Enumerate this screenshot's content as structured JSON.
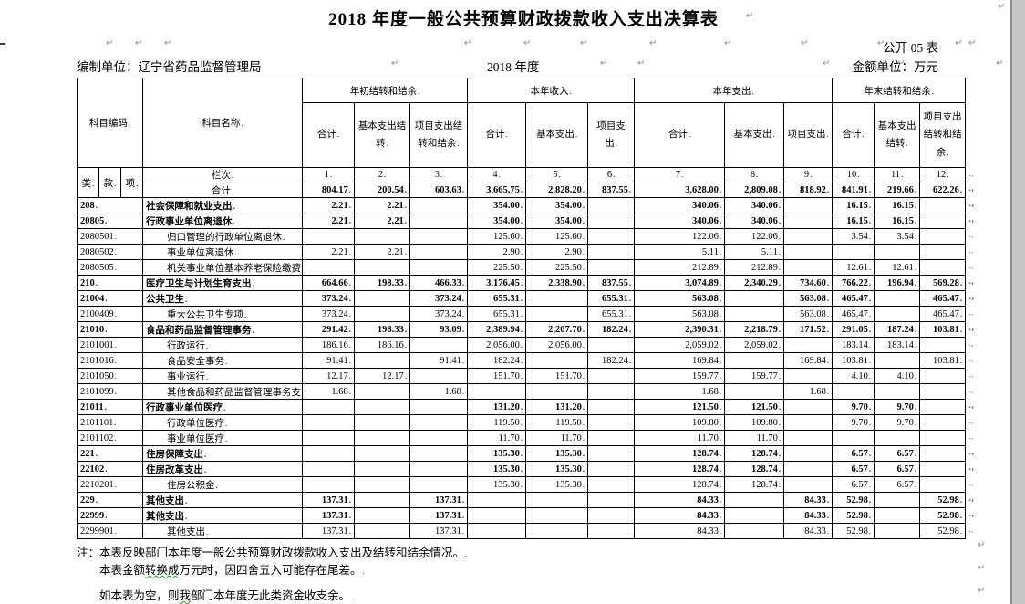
{
  "page": {
    "title": "2018 年度一般公共预算财政拨款收入支出决算表",
    "table_code": "公开 05 表",
    "unit_label": "编制单位：辽宁省药品监督管理局",
    "period": "2018 年度",
    "amount_unit": "金额单位：万元"
  },
  "icons": {
    "paragraph_mark": "↵",
    "row_end_mark": ".,"
  },
  "table": {
    "code_header": "科目编码",
    "name_header": "科目名称",
    "code_parts": [
      "类",
      "款",
      "项"
    ],
    "lanci_label": "栏次",
    "col_nums": [
      "1",
      "2",
      "3",
      "4",
      "5",
      "6",
      "7",
      "8",
      "9",
      "10",
      "11",
      "12"
    ],
    "groups": [
      "年初结转和结余",
      "本年收入",
      "本年支出",
      "年末结转和结余"
    ],
    "subheaders": [
      "合计",
      "基本支出结转",
      "项目支出结转和结余",
      "合计",
      "基本支出",
      "项目支出",
      "合计",
      "基本支出",
      "项目支出",
      "合计",
      "基本支出结转",
      "项目支出结转和结余"
    ],
    "rows": [
      {
        "code": "",
        "name": "合计",
        "total": true,
        "bold": false,
        "indent": false,
        "values": [
          "804.17",
          "200.54",
          "603.63",
          "3,665.75",
          "2,828.20",
          "837.55",
          "3,628.00",
          "2,809.08",
          "818.92",
          "841.91",
          "219.66",
          "622.26"
        ]
      },
      {
        "code": "208",
        "name": "社会保障和就业支出",
        "bold": true,
        "indent": false,
        "values": [
          "2.21",
          "2.21",
          "",
          "354.00",
          "354.00",
          "",
          "340.06",
          "340.06",
          "",
          "16.15",
          "16.15",
          ""
        ]
      },
      {
        "code": "20805",
        "name": "行政事业单位离退休",
        "bold": true,
        "indent": false,
        "values": [
          "2.21",
          "2.21",
          "",
          "354.00",
          "354.00",
          "",
          "340.06",
          "340.06",
          "",
          "16.15",
          "16.15",
          ""
        ]
      },
      {
        "code": "2080501",
        "name": "归口管理的行政单位离退休",
        "bold": false,
        "indent": true,
        "values": [
          "",
          "",
          "",
          "125.60",
          "125.60",
          "",
          "122.06",
          "122.06",
          "",
          "3.54",
          "3.54",
          ""
        ]
      },
      {
        "code": "2080502",
        "name": "事业单位离退休",
        "bold": false,
        "indent": true,
        "values": [
          "2.21",
          "2.21",
          "",
          "2.90",
          "2.90",
          "",
          "5.11",
          "5.11",
          "",
          "",
          "",
          ""
        ]
      },
      {
        "code": "2080505",
        "name": "机关事业单位基本养老保险缴费支出",
        "bold": false,
        "indent": true,
        "values": [
          "",
          "",
          "",
          "225.50",
          "225.50",
          "",
          "212.89",
          "212.89",
          "",
          "12.61",
          "12.61",
          ""
        ]
      },
      {
        "code": "210",
        "name": "医疗卫生与计划生育支出",
        "bold": true,
        "indent": false,
        "values": [
          "664.66",
          "198.33",
          "466.33",
          "3,176.45",
          "2,338.90",
          "837.55",
          "3,074.89",
          "2,340.29",
          "734.60",
          "766.22",
          "196.94",
          "569.28"
        ]
      },
      {
        "code": "21004",
        "name": "公共卫生",
        "bold": true,
        "indent": false,
        "values": [
          "373.24",
          "",
          "373.24",
          "655.31",
          "",
          "655.31",
          "563.08",
          "",
          "563.08",
          "465.47",
          "",
          "465.47"
        ]
      },
      {
        "code": "2100409",
        "name": "重大公共卫生专项",
        "bold": false,
        "indent": true,
        "values": [
          "373.24",
          "",
          "373.24",
          "655.31",
          "",
          "655.31",
          "563.08",
          "",
          "563.08",
          "465.47",
          "",
          "465.47"
        ]
      },
      {
        "code": "21010",
        "name": "食品和药品监督管理事务",
        "bold": true,
        "indent": false,
        "values": [
          "291.42",
          "198.33",
          "93.09",
          "2,389.94",
          "2,207.70",
          "182.24",
          "2,390.31",
          "2,218.79",
          "171.52",
          "291.05",
          "187.24",
          "103.81"
        ]
      },
      {
        "code": "2101001",
        "name": "行政运行",
        "bold": false,
        "indent": true,
        "values": [
          "186.16",
          "186.16",
          "",
          "2,056.00",
          "2,056.00",
          "",
          "2,059.02",
          "2,059.02",
          "",
          "183.14",
          "183.14",
          ""
        ]
      },
      {
        "code": "2101016",
        "name": "食品安全事务",
        "bold": false,
        "indent": true,
        "values": [
          "91.41",
          "",
          "91.41",
          "182.24",
          "",
          "182.24",
          "169.84",
          "",
          "169.84",
          "103.81",
          "",
          "103.81"
        ]
      },
      {
        "code": "2101050",
        "name": "事业运行",
        "bold": false,
        "indent": true,
        "values": [
          "12.17",
          "12.17",
          "",
          "151.70",
          "151.70",
          "",
          "159.77",
          "159.77",
          "",
          "4.10",
          "4.10",
          ""
        ]
      },
      {
        "code": "2101099",
        "name": "其他食品和药品监督管理事务支出",
        "bold": false,
        "indent": true,
        "values": [
          "1.68",
          "",
          "1.68",
          "",
          "",
          "",
          "1.68",
          "",
          "1.68",
          "",
          "",
          ""
        ]
      },
      {
        "code": "21011",
        "name": "行政事业单位医疗",
        "bold": true,
        "indent": false,
        "values": [
          "",
          "",
          "",
          "131.20",
          "131.20",
          "",
          "121.50",
          "121.50",
          "",
          "9.70",
          "9.70",
          ""
        ]
      },
      {
        "code": "2101101",
        "name": "行政单位医疗",
        "bold": false,
        "indent": true,
        "values": [
          "",
          "",
          "",
          "119.50",
          "119.50",
          "",
          "109.80",
          "109.80",
          "",
          "9.70",
          "9.70",
          ""
        ]
      },
      {
        "code": "2101102",
        "name": "事业单位医疗",
        "bold": false,
        "indent": true,
        "values": [
          "",
          "",
          "",
          "11.70",
          "11.70",
          "",
          "11.70",
          "11.70",
          "",
          "",
          "",
          ""
        ]
      },
      {
        "code": "221",
        "name": "住房保障支出",
        "bold": true,
        "indent": false,
        "values": [
          "",
          "",
          "",
          "135.30",
          "135.30",
          "",
          "128.74",
          "128.74",
          "",
          "6.57",
          "6.57",
          ""
        ]
      },
      {
        "code": "22102",
        "name": "住房改革支出",
        "bold": true,
        "indent": false,
        "values": [
          "",
          "",
          "",
          "135.30",
          "135.30",
          "",
          "128.74",
          "128.74",
          "",
          "6.57",
          "6.57",
          ""
        ]
      },
      {
        "code": "2210201",
        "name": "住房公积金",
        "bold": false,
        "indent": true,
        "values": [
          "",
          "",
          "",
          "135.30",
          "135.30",
          "",
          "128.74",
          "128.74",
          "",
          "6.57",
          "6.57",
          ""
        ]
      },
      {
        "code": "229",
        "name": "其他支出",
        "bold": true,
        "indent": false,
        "values": [
          "137.31",
          "",
          "137.31",
          "",
          "",
          "",
          "84.33",
          "",
          "84.33",
          "52.98",
          "",
          "52.98"
        ]
      },
      {
        "code": "22999",
        "name": "其他支出",
        "bold": true,
        "indent": false,
        "values": [
          "137.31",
          "",
          "137.31",
          "",
          "",
          "",
          "84.33",
          "",
          "84.33",
          "52.98",
          "",
          "52.98"
        ]
      },
      {
        "code": "2299901",
        "name": "其他支出",
        "bold": false,
        "indent": true,
        "values": [
          "137.31",
          "",
          "137.31",
          "",
          "",
          "",
          "84.33",
          "",
          "84.33",
          "52.98",
          "",
          "52.98"
        ]
      }
    ]
  },
  "notes": {
    "line1": "注：本表反映部门本年度一般公共预算财政拨款收入支出及结转和结余情况。",
    "line2_pre": "本表金额",
    "line2_wavy": "转换成",
    "line2_post": "万元时，因四舍五入可能存在尾差。",
    "line3_pre": "如本表为空，则",
    "line3_wavy": "我",
    "line3_post": "部门本年度无此类资金收支余。"
  }
}
